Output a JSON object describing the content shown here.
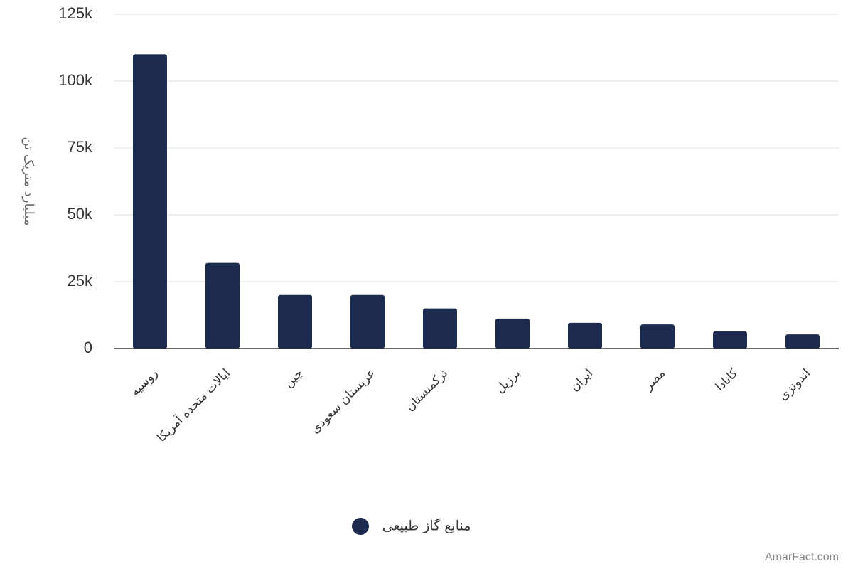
{
  "chart_data": {
    "type": "bar",
    "y_label": "میلیارد متریک تن",
    "categories": [
      "روسیه",
      "ایالات متحده آمریکا",
      "چین",
      "عربستان سعودی",
      "ترکمنستان",
      "برزیل",
      "ایران",
      "مصر",
      "کانادا",
      "اندونزی"
    ],
    "series": [
      {
        "name": "منابع گاز طبیعی",
        "color": "#1b2a4e",
        "values": [
          110000,
          32000,
          20000,
          20000,
          15000,
          11200,
          9600,
          9000,
          6400,
          5300
        ]
      }
    ],
    "ylim": [
      0,
      125000
    ],
    "yticks": [
      0,
      {
        "value": 25000,
        "label": "25k"
      },
      {
        "value": 50000,
        "label": "50k"
      },
      {
        "value": 75000,
        "label": "75k"
      },
      {
        "value": 100000,
        "label": "100k"
      },
      {
        "value": 125000,
        "label": "125k"
      }
    ],
    "grid": true,
    "watermark": "AmarFact.com"
  }
}
